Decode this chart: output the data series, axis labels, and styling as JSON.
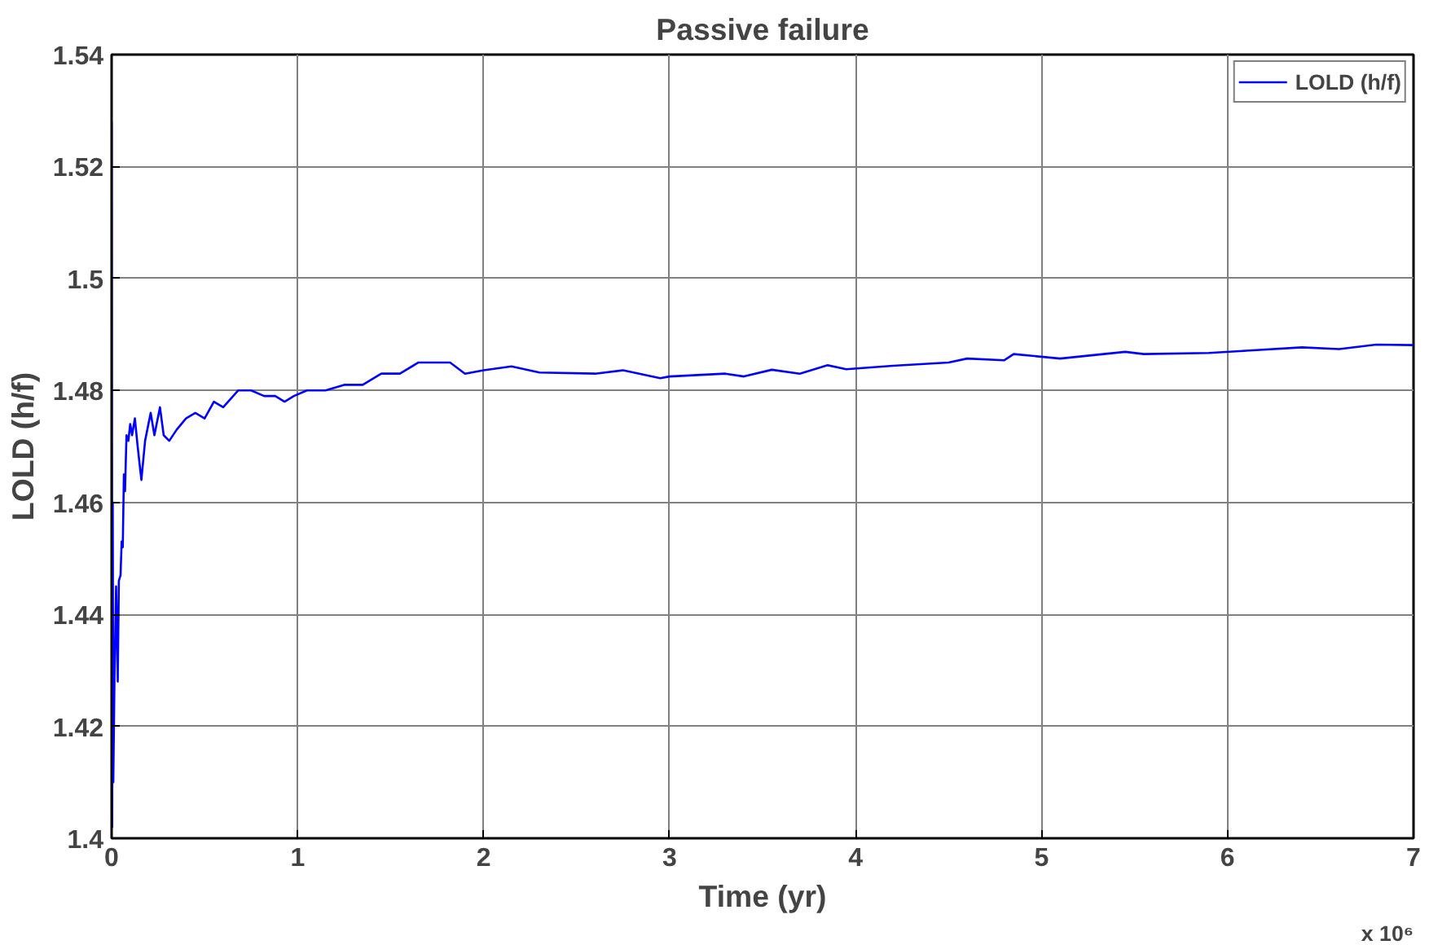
{
  "chart_data": {
    "type": "line",
    "title": "Passive failure",
    "xlabel": "Time (yr)",
    "ylabel": "LOLD (h/f)",
    "annotations": [
      "x 10⁶"
    ],
    "xlim": [
      0,
      7
    ],
    "xticks": [
      0,
      1,
      2,
      3,
      4,
      5,
      6,
      7
    ],
    "ylim": [
      1.4,
      1.54
    ],
    "yticks": [
      1.4,
      {
        "value": 1.42,
        "label": "1.42"
      },
      {
        "value": 1.44,
        "label": "1.44"
      },
      {
        "value": 1.46,
        "label": "1.46"
      },
      {
        "value": 1.48,
        "label": "1.48"
      },
      {
        "value": 1.5,
        "label": "1.5"
      },
      {
        "value": 1.52,
        "label": "1.52"
      },
      {
        "value": 1.54,
        "label": "1.54"
      }
    ],
    "grid": true,
    "legend": "top right",
    "marker": "none",
    "line_style": "solid",
    "series": [
      {
        "name": "LOLD (h/f)",
        "color": "#0000ff",
        "x": [
          0,
          0.003,
          0.006,
          0.009,
          0.015,
          0.024,
          0.033,
          0.039,
          0.048,
          0.054,
          0.06,
          0.066,
          0.072,
          0.08,
          0.09,
          0.1,
          0.11,
          0.125,
          0.14,
          0.16,
          0.18,
          0.21,
          0.23,
          0.26,
          0.28,
          0.31,
          0.35,
          0.4,
          0.45,
          0.5,
          0.55,
          0.6,
          0.68,
          0.75,
          0.82,
          0.88,
          0.93,
          0.98,
          1.05,
          1.15,
          1.25,
          1.35,
          1.45,
          1.55,
          1.65,
          1.75,
          1.82,
          1.9,
          2.0,
          2.15,
          2.3,
          2.6,
          2.75,
          2.95,
          3.0,
          3.3,
          3.4,
          3.55,
          3.7,
          3.85,
          3.95,
          4.2,
          4.5,
          4.6,
          4.8,
          4.85,
          5.1,
          5.45,
          5.55,
          5.9,
          6.1,
          6.4,
          6.6,
          6.8,
          7.0
        ],
        "values": [
          1.528,
          1.402,
          1.46,
          1.41,
          1.4275,
          1.445,
          1.428,
          1.446,
          1.447,
          1.453,
          1.452,
          1.465,
          1.462,
          1.472,
          1.471,
          1.474,
          1.472,
          1.475,
          1.47,
          1.464,
          1.471,
          1.476,
          1.472,
          1.477,
          1.472,
          1.471,
          1.473,
          1.475,
          1.476,
          1.475,
          1.478,
          1.477,
          1.48,
          1.48,
          1.479,
          1.479,
          1.478,
          1.479,
          1.48,
          1.48,
          1.481,
          1.481,
          1.483,
          1.483,
          1.485,
          1.485,
          1.485,
          1.483,
          1.4836,
          1.4843,
          1.4832,
          1.483,
          1.4836,
          1.4822,
          1.4825,
          1.483,
          1.4825,
          1.4837,
          1.483,
          1.4845,
          1.4838,
          1.4844,
          1.485,
          1.4857,
          1.4854,
          1.4865,
          1.4857,
          1.4869,
          1.4865,
          1.4867,
          1.4871,
          1.4877,
          1.4874,
          1.4882,
          1.4881
        ]
      }
    ]
  }
}
